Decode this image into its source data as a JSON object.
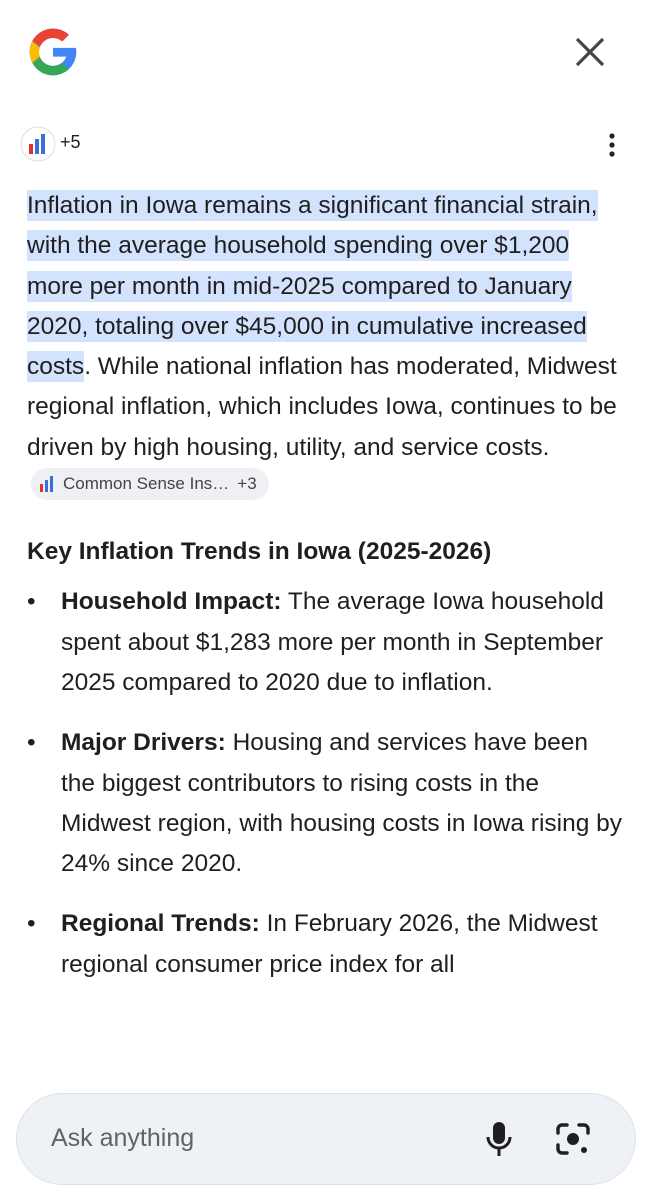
{
  "header": {
    "source_count": "+5"
  },
  "answer": {
    "highlighted": "Inflation in Iowa remains a significant financial strain, with the average household spending over $1,200 more per month in mid-2025 compared to January 2020, totaling over $45,000 in cumulative increased costs",
    "text": ". While national inflation has moderated, Midwest regional inflation, which includes Iowa, continues to be driven by high housing, utility, and service costs.",
    "chip": {
      "label": "Common Sense Ins…",
      "count": "+3"
    }
  },
  "section": {
    "heading": "Key Inflation Trends in Iowa (2025-2026)",
    "bullets": [
      {
        "label": "Household Impact:",
        "text": "The average Iowa household spent about $1,283 more per month in September 2025 compared to 2020 due to inflation."
      },
      {
        "label": "Major Drivers:",
        "text": "Housing and services have been the biggest contributors to rising costs in the Midwest region, with housing costs in Iowa rising by 24% since 2020."
      },
      {
        "label": "Regional Trends:",
        "text": "In February 2026, the Midwest regional consumer price index for all"
      }
    ]
  },
  "input": {
    "placeholder": "Ask anything"
  }
}
